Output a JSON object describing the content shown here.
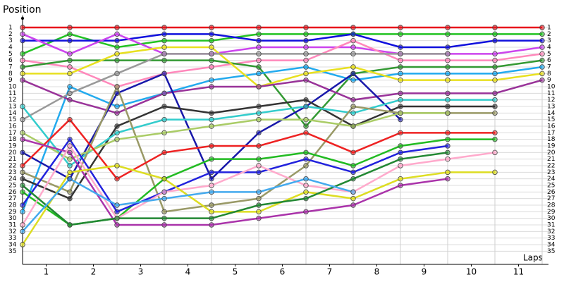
{
  "chart_data": {
    "type": "line",
    "ylabel": "Position",
    "xlabel": "Laps",
    "x": [
      0,
      1,
      2,
      3,
      4,
      5,
      6,
      7,
      8,
      9,
      10,
      11
    ],
    "xlim": [
      0,
      11.5
    ],
    "xticks": [
      {
        "value": 0.5,
        "label": "1"
      },
      {
        "value": 1.5,
        "label": "2"
      },
      {
        "value": 2.5,
        "label": "3"
      },
      {
        "value": 3.5,
        "label": "4"
      },
      {
        "value": 4.5,
        "label": "5"
      },
      {
        "value": 5.5,
        "label": "6"
      },
      {
        "value": 6.5,
        "label": "7"
      },
      {
        "value": 7.5,
        "label": "8"
      },
      {
        "value": 8.5,
        "label": "9"
      },
      {
        "value": 9.5,
        "label": "10"
      },
      {
        "value": 10.5,
        "label": "11"
      }
    ],
    "ylim": [
      37,
      -0.5
    ],
    "yticks": [
      1,
      2,
      3,
      4,
      5,
      6,
      7,
      8,
      9,
      10,
      11,
      12,
      13,
      14,
      15,
      16,
      17,
      18,
      19,
      20,
      21,
      22,
      23,
      24,
      25,
      26,
      27,
      28,
      29,
      30,
      31,
      32,
      33,
      34,
      35
    ],
    "grid": true,
    "series": [
      {
        "color": "#e8141c",
        "values": [
          1,
          1,
          1,
          1,
          1,
          1,
          1,
          1,
          1,
          1,
          1,
          1
        ]
      },
      {
        "color": "#22c322",
        "values": [
          5,
          2,
          4,
          3,
          3,
          2,
          2,
          2,
          2,
          2,
          2,
          2
        ]
      },
      {
        "color": "#1010dd",
        "values": [
          3,
          3,
          3,
          2,
          2,
          3,
          3,
          2,
          4,
          4,
          3,
          3
        ]
      },
      {
        "color": "#cc44ee",
        "values": [
          2,
          5,
          2,
          5,
          5,
          4,
          4,
          4,
          5,
          5,
          5,
          4
        ]
      },
      {
        "color": "#ff88bb",
        "values": [
          6,
          7,
          10,
          8,
          7,
          6,
          6,
          3,
          6,
          6,
          6,
          5
        ]
      },
      {
        "color": "#339933",
        "values": [
          7,
          6,
          6,
          6,
          6,
          7,
          16,
          8,
          7,
          7,
          7,
          6
        ]
      },
      {
        "color": "#22aaee",
        "values": [
          29,
          10,
          13,
          11,
          9,
          8,
          7,
          9,
          8,
          8,
          8,
          7
        ]
      },
      {
        "color": "#e8e020",
        "values": [
          8,
          8,
          5,
          4,
          4,
          10,
          8,
          7,
          9,
          9,
          9,
          8
        ]
      },
      {
        "color": "#993399",
        "values": [
          9,
          12,
          14,
          11,
          10,
          10,
          9,
          12,
          11,
          11,
          11,
          9
        ]
      },
      {
        "color": "#1818aa",
        "values": [
          20,
          24,
          11,
          8,
          24,
          17,
          13,
          8,
          15,
          null,
          null,
          null
        ]
      },
      {
        "color": "#999999",
        "values": [
          15,
          11,
          8,
          5,
          5,
          5,
          5,
          5,
          5,
          5,
          null,
          null
        ]
      },
      {
        "color": "#333333",
        "values": [
          24,
          27,
          16,
          13,
          14,
          13,
          12,
          16,
          13,
          13,
          13,
          null
        ]
      },
      {
        "color": "#33cccc",
        "values": [
          13,
          22,
          17,
          15,
          15,
          14,
          13,
          14,
          12,
          12,
          12,
          null
        ]
      },
      {
        "color": "#999966",
        "values": [
          23,
          26,
          10,
          29,
          28,
          27,
          22,
          13,
          14,
          14,
          14,
          null
        ]
      },
      {
        "color": "#aacc66",
        "values": [
          17,
          21,
          18,
          17,
          16,
          15,
          15,
          16,
          14,
          14,
          null,
          null
        ]
      },
      {
        "color": "#ee2222",
        "values": [
          22,
          15,
          24,
          20,
          19,
          19,
          17,
          20,
          17,
          17,
          17,
          null
        ]
      },
      {
        "color": "#22bb22",
        "values": [
          26,
          31,
          30,
          24,
          21,
          21,
          20,
          22,
          19,
          18,
          18,
          null
        ]
      },
      {
        "color": "#2222dd",
        "values": [
          28,
          18,
          29,
          26,
          23,
          23,
          21,
          23,
          20,
          19,
          null,
          null
        ]
      },
      {
        "color": "#aa33aa",
        "values": [
          18,
          20,
          31,
          31,
          31,
          30,
          29,
          28,
          25,
          24,
          null,
          null
        ]
      },
      {
        "color": "#ffaacc",
        "values": [
          31,
          19,
          30,
          26,
          25,
          22,
          25,
          26,
          22,
          21,
          20,
          null
        ]
      },
      {
        "color": "#dddd22",
        "values": [
          34,
          23,
          22,
          24,
          29,
          29,
          26,
          27,
          24,
          23,
          23,
          null
        ]
      },
      {
        "color": "#228833",
        "values": [
          25,
          31,
          30,
          30,
          30,
          28,
          27,
          24,
          21,
          20,
          null,
          null
        ]
      },
      {
        "color": "#44aaee",
        "values": [
          32,
          24,
          28,
          27,
          26,
          26,
          24,
          26,
          null,
          null,
          null,
          null
        ]
      }
    ]
  }
}
